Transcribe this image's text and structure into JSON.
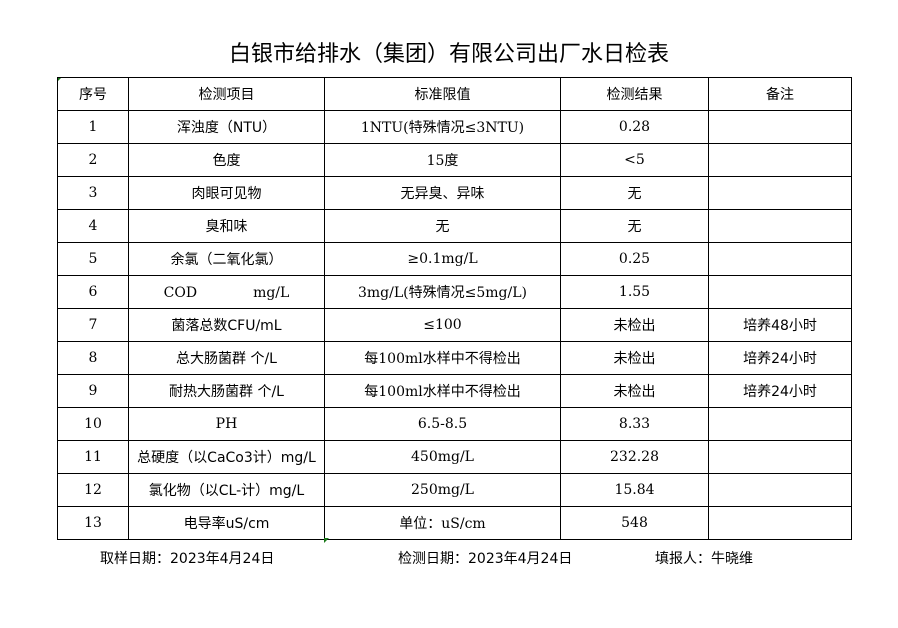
{
  "title": "白银市给排水（集团）有限公司出厂水日检表",
  "headers": [
    "序号",
    "检测项目",
    "标准限值",
    "检测结果",
    "备注"
  ],
  "rows": [
    [
      "1",
      "浑浊度（NTU）",
      "1NTU(特殊情况≤3NTU)",
      "0.28",
      ""
    ],
    [
      "2",
      "色度",
      "15度",
      "<5",
      ""
    ],
    [
      "3",
      "肉眼可见物",
      "无异臭、异味",
      "无",
      ""
    ],
    [
      "4",
      "臭和味",
      "无",
      "无",
      ""
    ],
    [
      "5",
      "余氯（二氧化氯）",
      "≥0.1mg/L",
      "0.25",
      ""
    ],
    [
      "6",
      "COD　　　　mg/L",
      "3mg/L(特殊情况≤5mg/L)",
      "1.55",
      ""
    ],
    [
      "7",
      "菌落总数CFU/mL",
      "≤100",
      "未检出",
      "培养48小时"
    ],
    [
      "8",
      "总大肠菌群 个/L",
      "每100ml水样中不得检出",
      "未检出",
      "培养24小时"
    ],
    [
      "9",
      "耐热大肠菌群 个/L",
      "每100ml水样中不得检出",
      "未检出",
      "培养24小时"
    ],
    [
      "10",
      "PH",
      "6.5-8.5",
      "8.33",
      ""
    ],
    [
      "11",
      "总硬度（以CaCo3计）mg/L",
      "450mg/L",
      "232.28",
      ""
    ],
    [
      "12",
      "氯化物（以CL-计）mg/L",
      "250mg/L",
      "15.84",
      ""
    ],
    [
      "13",
      "电导率uS/cm",
      "单位：uS/cm",
      "548",
      ""
    ]
  ],
  "footer": {
    "sample_date": "取样日期：2023年4月24日",
    "test_date": "检测日期：2023年4月24日",
    "reporter": "填报人：牛晓维"
  }
}
